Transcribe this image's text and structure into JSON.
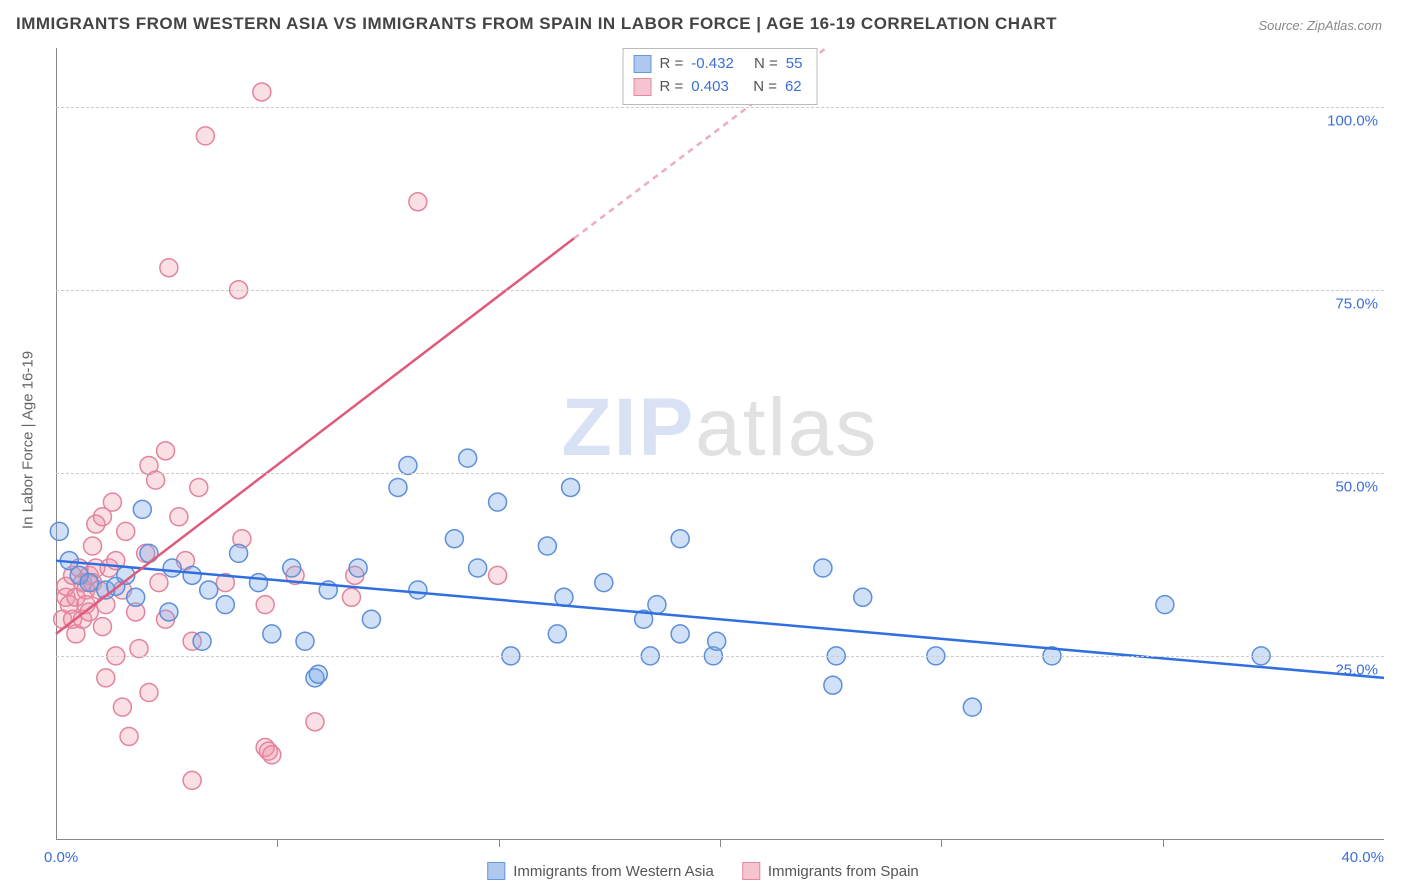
{
  "title": "IMMIGRANTS FROM WESTERN ASIA VS IMMIGRANTS FROM SPAIN IN LABOR FORCE | AGE 16-19 CORRELATION CHART",
  "source": "Source: ZipAtlas.com",
  "watermark_a": "ZIP",
  "watermark_b": "atlas",
  "chart": {
    "type": "scatter-correlation",
    "y_label": "In Labor Force | Age 16-19",
    "xlim": [
      0,
      40
    ],
    "ylim": [
      0,
      108
    ],
    "x_ticks": [
      0,
      40
    ],
    "x_tick_labels": [
      "0.0%",
      "40.0%"
    ],
    "x_minor_ticks": [
      6.67,
      13.33,
      20,
      26.67,
      33.33
    ],
    "y_grid": [
      25,
      50,
      75,
      100
    ],
    "y_tick_labels": [
      "25.0%",
      "50.0%",
      "75.0%",
      "100.0%"
    ],
    "background_color": "#ffffff",
    "grid_color": "#cccccc",
    "axis_color": "#888888",
    "tick_label_color": "#3b6fd6",
    "label_fontsize": 15,
    "title_fontsize": 17,
    "marker_radius": 9,
    "marker_stroke_width": 1.5,
    "trend_line_width": 2.5
  },
  "series": [
    {
      "name": "Immigrants from Western Asia",
      "fill": "rgba(120,165,230,0.35)",
      "stroke": "#5e8fd8",
      "swatch_fill": "#aec8ef",
      "swatch_stroke": "#6a98db",
      "R": "-0.432",
      "N": "55",
      "trend": {
        "x1": 0,
        "y1": 38,
        "x2": 40,
        "y2": 22,
        "dashed": false,
        "stroke": "#2f6fe0"
      },
      "points": [
        [
          0.1,
          42
        ],
        [
          0.4,
          38
        ],
        [
          0.7,
          36
        ],
        [
          1.0,
          35
        ],
        [
          1.5,
          34
        ],
        [
          1.8,
          34.5
        ],
        [
          2.1,
          36
        ],
        [
          2.4,
          33
        ],
        [
          2.8,
          39
        ],
        [
          2.6,
          45
        ],
        [
          3.5,
          37
        ],
        [
          3.4,
          31
        ],
        [
          4.1,
          36
        ],
        [
          4.4,
          27
        ],
        [
          4.6,
          34
        ],
        [
          5.1,
          32
        ],
        [
          5.5,
          39
        ],
        [
          6.1,
          35
        ],
        [
          6.5,
          28
        ],
        [
          7.1,
          37
        ],
        [
          7.5,
          27
        ],
        [
          7.8,
          22
        ],
        [
          7.9,
          22.5
        ],
        [
          8.2,
          34
        ],
        [
          9.1,
          37
        ],
        [
          9.5,
          30
        ],
        [
          10.3,
          48
        ],
        [
          10.6,
          51
        ],
        [
          10.9,
          34
        ],
        [
          12.0,
          41
        ],
        [
          12.4,
          52
        ],
        [
          12.7,
          37
        ],
        [
          13.7,
          25
        ],
        [
          13.3,
          46
        ],
        [
          14.8,
          40
        ],
        [
          15.5,
          48
        ],
        [
          15.3,
          33
        ],
        [
          15.1,
          28
        ],
        [
          16.5,
          35
        ],
        [
          17.7,
          30
        ],
        [
          17.9,
          25
        ],
        [
          18.1,
          32
        ],
        [
          18.8,
          41
        ],
        [
          18.8,
          28
        ],
        [
          19.8,
          25
        ],
        [
          19.9,
          27
        ],
        [
          23.1,
          37
        ],
        [
          23.4,
          21
        ],
        [
          24.3,
          33
        ],
        [
          23.5,
          25
        ],
        [
          26.5,
          25
        ],
        [
          27.6,
          18
        ],
        [
          30.0,
          25
        ],
        [
          33.4,
          32
        ],
        [
          36.3,
          25
        ]
      ]
    },
    {
      "name": "Immigrants from Spain",
      "fill": "rgba(240,150,170,0.30)",
      "stroke": "#e3849c",
      "swatch_fill": "#f6c4d0",
      "swatch_stroke": "#e48aa0",
      "R": "0.403",
      "N": "62",
      "trend": {
        "x1": 0,
        "y1": 28,
        "x2": 15.6,
        "y2": 82,
        "dashed": false,
        "stroke": "#e05a7b"
      },
      "trend_ext": {
        "x1": 15.6,
        "y1": 82,
        "x2": 23.2,
        "y2": 108,
        "dashed": true,
        "stroke": "rgba(224,90,123,0.5)"
      },
      "points": [
        [
          0.2,
          30
        ],
        [
          0.3,
          33
        ],
        [
          0.3,
          34.5
        ],
        [
          0.4,
          32
        ],
        [
          0.5,
          36
        ],
        [
          0.5,
          30
        ],
        [
          0.6,
          28
        ],
        [
          0.6,
          33
        ],
        [
          0.7,
          37
        ],
        [
          0.8,
          35
        ],
        [
          0.8,
          30
        ],
        [
          0.9,
          34
        ],
        [
          0.9,
          32
        ],
        [
          1.0,
          36
        ],
        [
          1.0,
          31
        ],
        [
          1.1,
          35
        ],
        [
          1.1,
          40
        ],
        [
          1.2,
          37
        ],
        [
          1.2,
          43
        ],
        [
          1.3,
          34
        ],
        [
          1.4,
          44
        ],
        [
          1.4,
          29
        ],
        [
          1.5,
          32
        ],
        [
          1.5,
          22
        ],
        [
          1.6,
          37
        ],
        [
          1.7,
          46
        ],
        [
          1.8,
          38
        ],
        [
          1.8,
          25
        ],
        [
          2.0,
          34
        ],
        [
          2.0,
          18
        ],
        [
          2.1,
          42
        ],
        [
          2.2,
          14
        ],
        [
          2.4,
          31
        ],
        [
          2.5,
          26
        ],
        [
          2.7,
          39
        ],
        [
          2.8,
          51
        ],
        [
          2.8,
          20
        ],
        [
          3.0,
          49
        ],
        [
          3.1,
          35
        ],
        [
          3.3,
          30
        ],
        [
          3.3,
          53
        ],
        [
          3.4,
          78
        ],
        [
          3.7,
          44
        ],
        [
          3.9,
          38
        ],
        [
          4.1,
          27
        ],
        [
          4.3,
          48
        ],
        [
          4.1,
          8
        ],
        [
          4.5,
          96
        ],
        [
          5.1,
          35
        ],
        [
          5.5,
          75
        ],
        [
          5.6,
          41
        ],
        [
          6.2,
          102
        ],
        [
          6.3,
          12.5
        ],
        [
          6.4,
          12
        ],
        [
          6.5,
          11.5
        ],
        [
          6.3,
          32
        ],
        [
          7.2,
          36
        ],
        [
          7.8,
          16
        ],
        [
          8.9,
          33
        ],
        [
          9.0,
          36
        ],
        [
          10.9,
          87
        ],
        [
          13.3,
          36
        ]
      ]
    }
  ],
  "legend_top": {
    "r_label": "R =",
    "n_label": "N ="
  },
  "legend_bottom": {
    "items": [
      "Immigrants from Western Asia",
      "Immigrants from Spain"
    ]
  }
}
